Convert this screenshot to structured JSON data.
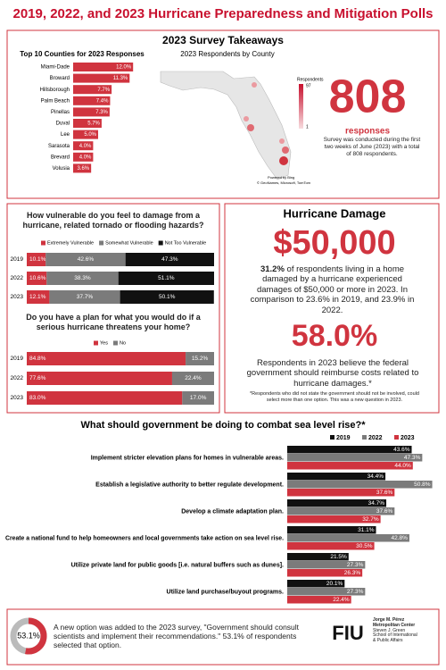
{
  "title": "2019, 2022, and 2023 Hurricane Preparedness and Mitigation Polls",
  "takeaways": {
    "heading": "2023 Survey Takeaways",
    "map_title": "2023 Respondents by County",
    "map_legend": {
      "title": "Respondents",
      "max": 97,
      "min": 1
    },
    "map_credits": [
      "Powered by Bing",
      "© GeoNames, Microsoft, TomTom"
    ],
    "total": 808,
    "total_label": "responses",
    "note": "Survey was conducted during the first two weeks of June (2023) with a total of 808 respondents."
  },
  "damage": {
    "heading": "Hurricane Damage",
    "amount": "$50,000",
    "highlight": "31.2%",
    "text": "of respondents living in a home damaged by a hurricane experienced damages of $50,000 or more in 2023. In comparison to 23.6% in 2019, and 23.9% in 2022.",
    "reimburse": "58.0%",
    "reimburse_text": "Respondents in 2023 believe the federal government should reimburse costs related to hurricane damages.*",
    "footnote": "*Respondents who did not state the government should not be involved, could select more than one option. This was a new question in 2023."
  },
  "footer": {
    "note": "A new option was added to the 2023 survey, \"Government should consult scientists and implement their recommendations.\" 53.1% of respondents selected that option.",
    "logo": "FIU",
    "logo_lines": [
      "Jorge M. Pérez",
      "Metropolitan Center",
      "Steven J. Green",
      "School of International",
      "& Public Affairs"
    ]
  },
  "chart_data": [
    {
      "type": "bar",
      "title": "Top 10 Counties for 2023 Responses",
      "color": "#d0343f",
      "categories": [
        "Miami-Dade",
        "Broward",
        "Hillsborough",
        "Palm Beach",
        "Pinellas",
        "Duval",
        "Lee",
        "Sarasota",
        "Brevard",
        "Volusia"
      ],
      "values": [
        12.0,
        11.3,
        7.7,
        7.4,
        7.3,
        5.7,
        5.0,
        4.0,
        4.0,
        3.6
      ],
      "value_labels": [
        "12.0%",
        "11.3%",
        "7.7%",
        "7.4%",
        "7.3%",
        "5.7%",
        "5.0%",
        "4.0%",
        "4.0%",
        "3.6%"
      ]
    },
    {
      "type": "stacked_bar",
      "title": "How vulnerable do you feel to damage from a hurricane, related tornado or flooding hazards?",
      "categories": [
        "2019",
        "2022",
        "2023"
      ],
      "series": [
        {
          "name": "Extremely Vulnerable",
          "color": "#d0343f",
          "values": [
            10.1,
            10.6,
            12.1
          ],
          "value_labels": [
            "10.1%",
            "10.6%",
            "12.1%"
          ]
        },
        {
          "name": "Somewhat Vulnerable",
          "color": "#7b7b7b",
          "values": [
            42.6,
            38.3,
            37.7
          ],
          "value_labels": [
            "42.6%",
            "38.3%",
            "37.7%"
          ]
        },
        {
          "name": "Not Too Vulnerable",
          "color": "#111111",
          "values": [
            47.3,
            51.1,
            50.1
          ],
          "value_labels": [
            "47.3%",
            "51.1%",
            "50.1%"
          ]
        }
      ]
    },
    {
      "type": "stacked_bar",
      "title": "Do you have a plan for what you would do if a serious hurricane threatens your home?",
      "categories": [
        "2019",
        "2022",
        "2023"
      ],
      "series": [
        {
          "name": "Yes",
          "color": "#d0343f",
          "values": [
            84.8,
            77.6,
            83.0
          ],
          "value_labels": [
            "84.8%",
            "77.6%",
            "83.0%"
          ]
        },
        {
          "name": "No",
          "color": "#7b7b7b",
          "values": [
            15.2,
            22.4,
            17.0
          ],
          "value_labels": [
            "15.2%",
            "22.4%",
            "17.0%"
          ]
        }
      ]
    },
    {
      "type": "grouped_bar",
      "title": "What should government be doing to combat sea level rise?*",
      "categories": [
        "Implement stricter elevation plans for homes in vulnerable areas.",
        "Establish a legislative authority to better regulate development.",
        "Develop a climate adaptation plan.",
        "Create a national fund to help homeowners and local governments take action on sea level rise.",
        "Utilize private land for public goods [i.e. natural buffers such as dunes].",
        "Utilize land purchase/buyout programs."
      ],
      "series": [
        {
          "name": "2019",
          "color": "#111111",
          "values": [
            43.6,
            34.4,
            34.7,
            31.1,
            21.5,
            20.1
          ],
          "value_labels": [
            "43.6%",
            "34.4%",
            "34.7%",
            "31.1%",
            "21.5%",
            "20.1%"
          ]
        },
        {
          "name": "2022",
          "color": "#7b7b7b",
          "values": [
            47.3,
            50.8,
            37.6,
            42.8,
            27.3,
            27.3
          ],
          "value_labels": [
            "47.3%",
            "50.8%",
            "37.6%",
            "42.8%",
            "27.3%",
            "27.3%"
          ]
        },
        {
          "name": "2023",
          "color": "#d0343f",
          "values": [
            44.0,
            37.6,
            32.7,
            30.5,
            26.3,
            22.4
          ],
          "value_labels": [
            "44.0%",
            "37.6%",
            "32.7%",
            "30.5%",
            "26.3%",
            "22.4%"
          ]
        }
      ]
    },
    {
      "type": "pie",
      "values": [
        53.1
      ],
      "value_labels": [
        "53.1%"
      ],
      "colors": [
        "#d0343f"
      ]
    }
  ]
}
